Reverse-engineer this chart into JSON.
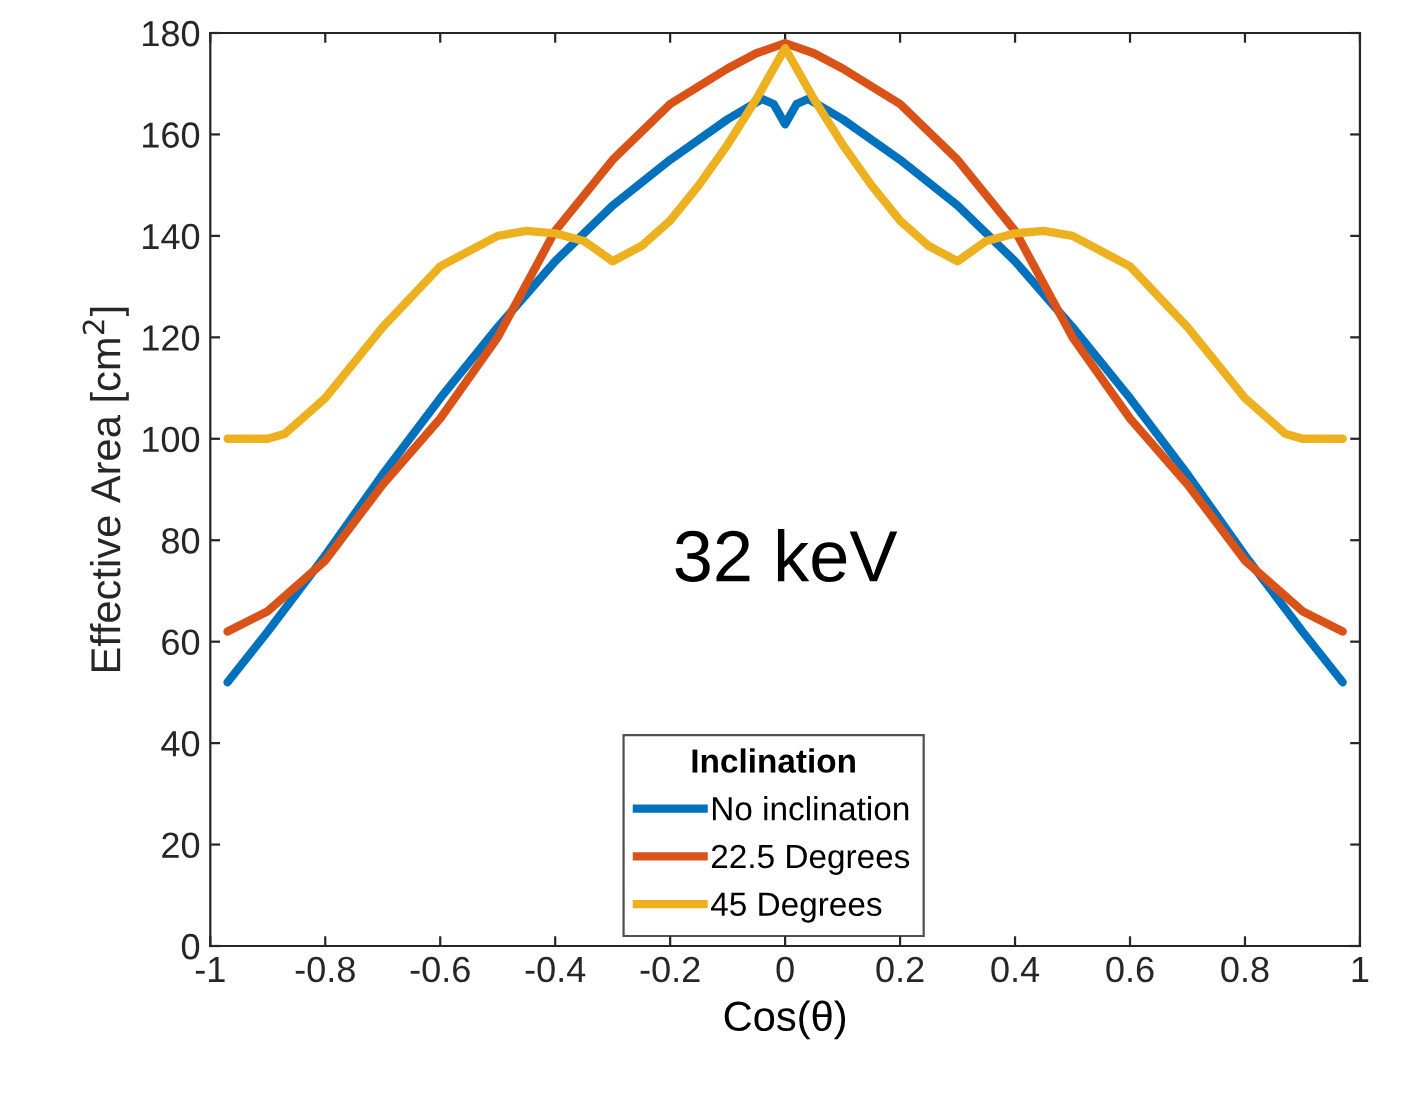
{
  "chart_data": {
    "type": "line",
    "xlabel": "Cos(θ)",
    "ylabel": "Effective Area [cm$^{2}$]",
    "legend_title": "Inclination",
    "legend": "bottom",
    "grid": false,
    "marker": "none",
    "line_style": "solid",
    "annotations": [
      "32 keV"
    ],
    "xlim": [
      -1,
      1
    ],
    "ylim": [
      0,
      180
    ],
    "xticks": [
      -1,
      -0.8,
      -0.6,
      -0.4,
      -0.2,
      0,
      0.2,
      0.4,
      0.6,
      0.8,
      1
    ],
    "yticks": [
      0,
      20,
      40,
      60,
      80,
      100,
      120,
      140,
      160,
      180
    ],
    "series": [
      {
        "name": "No inclination",
        "color": "#0072bd",
        "x": [
          -0.97,
          -0.9,
          -0.8,
          -0.7,
          -0.6,
          -0.5,
          -0.4,
          -0.3,
          -0.2,
          -0.1,
          -0.04,
          -0.02,
          0,
          0.02,
          0.04,
          0.1,
          0.2,
          0.3,
          0.4,
          0.5,
          0.6,
          0.7,
          0.8,
          0.9,
          0.97
        ],
        "values": [
          52,
          62,
          77,
          93,
          108,
          122,
          135,
          146,
          155,
          163,
          167,
          166,
          162,
          166,
          167,
          163,
          155,
          146,
          135,
          122,
          108,
          93,
          77,
          62,
          52
        ]
      },
      {
        "name": "22.5 Degrees",
        "color": "#d95319",
        "x": [
          -0.97,
          -0.9,
          -0.8,
          -0.7,
          -0.6,
          -0.5,
          -0.4,
          -0.3,
          -0.2,
          -0.1,
          -0.05,
          0,
          0.05,
          0.1,
          0.2,
          0.3,
          0.4,
          0.5,
          0.6,
          0.7,
          0.8,
          0.9,
          0.97
        ],
        "values": [
          62,
          66,
          76,
          91,
          104,
          120,
          141,
          155,
          166,
          173,
          176,
          178,
          176,
          173,
          166,
          155,
          141,
          120,
          104,
          91,
          76,
          66,
          62
        ]
      },
      {
        "name": "45 Degrees",
        "color": "#edb120",
        "x": [
          -0.97,
          -0.9,
          -0.87,
          -0.8,
          -0.7,
          -0.6,
          -0.5,
          -0.45,
          -0.4,
          -0.35,
          -0.3,
          -0.25,
          -0.2,
          -0.15,
          -0.1,
          -0.05,
          0,
          0.05,
          0.1,
          0.15,
          0.2,
          0.25,
          0.3,
          0.35,
          0.4,
          0.45,
          0.5,
          0.6,
          0.7,
          0.8,
          0.87,
          0.9,
          0.97
        ],
        "values": [
          100,
          100,
          101,
          108,
          122,
          134,
          140,
          141,
          140.5,
          139,
          135,
          138,
          143,
          150,
          158,
          167,
          177,
          167,
          158,
          150,
          143,
          138,
          135,
          139,
          140.5,
          141,
          140,
          134,
          122,
          108,
          101,
          100,
          100
        ]
      }
    ]
  }
}
